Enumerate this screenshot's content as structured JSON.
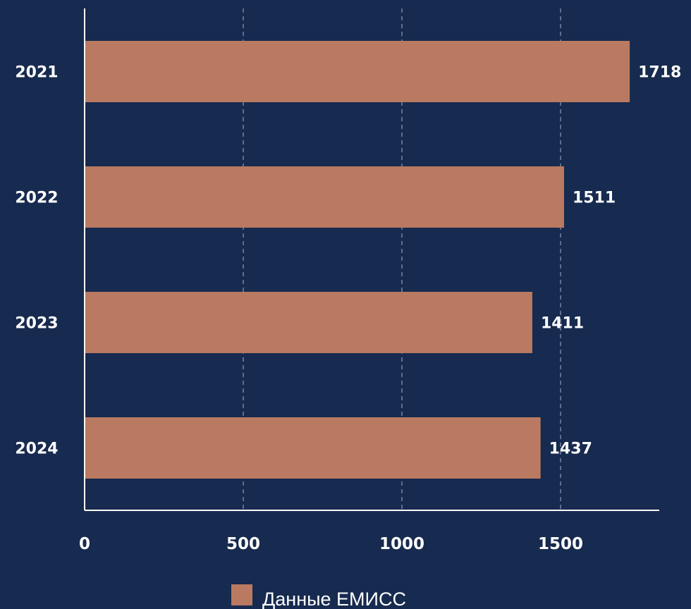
{
  "chart_data": {
    "type": "bar",
    "orientation": "horizontal",
    "categories": [
      "2021",
      "2022",
      "2023",
      "2024"
    ],
    "series": [
      {
        "name": "Данные ЕМИСС",
        "values": [
          1718,
          1511,
          1411,
          1437
        ]
      }
    ],
    "xlim": [
      0,
      1800
    ],
    "xticks": [
      0,
      500,
      1000,
      1500
    ],
    "xtick_labels": [
      "0",
      "500",
      "1000",
      "1500"
    ],
    "grid": "vertical-dashed",
    "legend_position": "bottom-center",
    "colors": {
      "background": "#172a4f",
      "bar": "#b97a61",
      "axis": "#ffffff",
      "grid": "#8f9bb3",
      "text": "#ffffff"
    }
  }
}
